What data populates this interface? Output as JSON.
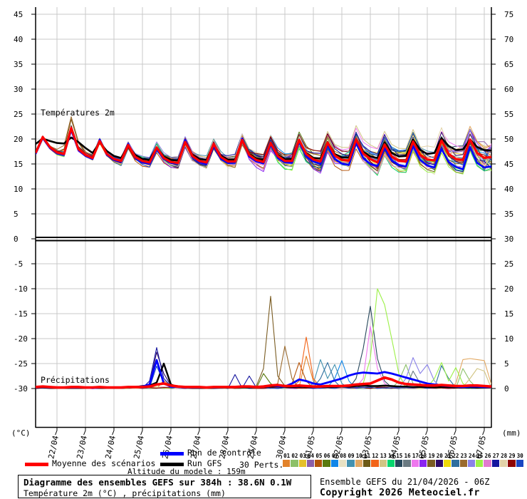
{
  "axis_units": {
    "left": "(°C)",
    "right": "(mm)"
  },
  "legend": {
    "mean": "Moyenne des scénarios",
    "control": "Run de contrôle",
    "gfs": "Run GFS",
    "perts": "30 Perts.",
    "altitude": "Altitude du modele : 159m",
    "colors": {
      "mean": "#FF0000",
      "control": "#0000FF",
      "gfs": "#000000"
    }
  },
  "footer": {
    "title": "Diagramme des ensembles GEFS sur 384h : 38.6N 0.1W",
    "subtitle": "Température 2m (°C) , précipitations (mm)",
    "run_info": "Ensemble GEFS du 21/04/2026 - 06Z",
    "copyright": "Copyright 2026 Meteociel.fr"
  },
  "chart_data": {
    "type": "line",
    "title": "Diagramme des ensembles GEFS sur 384h : 38.6N 0.1W",
    "subtitle": "Température 2m (°C) , précipitations (mm)",
    "run": "Ensemble GEFS du 21/04/2026 - 06Z",
    "grid": true,
    "x": {
      "start_hour": 0,
      "end_hour": 384,
      "step_hours": 6,
      "date_labels": [
        "22/04",
        "23/04",
        "24/04",
        "25/04",
        "26/04",
        "27/04",
        "28/04",
        "29/04",
        "30/04",
        "01/05",
        "02/05",
        "03/05",
        "04/05",
        "05/05",
        "06/05",
        "07/05"
      ]
    },
    "left_axis_ticks": [
      45,
      40,
      35,
      30,
      25,
      20,
      15,
      10,
      5,
      0,
      -5,
      -10,
      -15,
      -20,
      -25,
      -30
    ],
    "right_axis_ticks": [
      75,
      70,
      65,
      60,
      55,
      50,
      45,
      40,
      35,
      30,
      25,
      20,
      15,
      10,
      5,
      0
    ],
    "temperature_panel": {
      "label": "Températures 2m",
      "unit": "°C",
      "ylim": [
        0,
        45
      ],
      "series": [
        {
          "name": "Moyenne des scénarios",
          "color": "#FF0000",
          "width": 3.2,
          "values": [
            17.2,
            20.4,
            18.4,
            17.3,
            17.0,
            22.2,
            18.0,
            16.8,
            16.2,
            19.6,
            17.0,
            16.0,
            15.6,
            18.8,
            16.4,
            15.6,
            15.3,
            18.3,
            16.2,
            15.4,
            15.2,
            19.4,
            16.6,
            15.6,
            15.3,
            19.0,
            16.4,
            15.5,
            15.5,
            19.8,
            16.8,
            15.8,
            15.4,
            19.2,
            16.6,
            15.6,
            15.6,
            19.8,
            17.0,
            15.9,
            15.5,
            19.3,
            16.7,
            15.8,
            15.7,
            19.9,
            17.1,
            16.0,
            15.3,
            18.9,
            16.5,
            15.6,
            15.5,
            19.5,
            16.8,
            15.9,
            15.7,
            19.7,
            17.0,
            16.0,
            15.8,
            19.9,
            17.2,
            16.2,
            16.4
          ]
        },
        {
          "name": "Run de contrôle",
          "color": "#0000FF",
          "width": 2.6,
          "values": [
            17.0,
            20.2,
            18.2,
            17.1,
            16.9,
            21.8,
            17.8,
            16.6,
            16.0,
            19.9,
            16.8,
            15.8,
            15.4,
            19.0,
            16.2,
            15.3,
            15.0,
            18.0,
            16.0,
            15.2,
            15.1,
            19.8,
            16.4,
            15.4,
            15.0,
            18.6,
            16.1,
            15.2,
            15.3,
            20.1,
            16.5,
            15.5,
            15.1,
            18.8,
            16.2,
            15.3,
            15.2,
            19.4,
            16.5,
            15.5,
            15.0,
            18.8,
            16.0,
            15.1,
            14.8,
            19.2,
            16.2,
            15.0,
            14.6,
            18.2,
            15.7,
            14.8,
            14.5,
            18.6,
            15.8,
            14.7,
            14.3,
            18.0,
            15.4,
            14.4,
            13.9,
            18.4,
            15.2,
            14.3,
            14.5
          ]
        },
        {
          "name": "Run GFS",
          "color": "#000000",
          "width": 2.6,
          "values": [
            19.0,
            20.1,
            19.6,
            19.2,
            19.1,
            20.3,
            19.4,
            18.2,
            17.2,
            19.3,
            17.6,
            16.6,
            16.2,
            18.6,
            16.8,
            16.0,
            15.8,
            18.2,
            16.5,
            15.8,
            15.7,
            19.2,
            16.8,
            16.0,
            15.8,
            18.9,
            16.7,
            15.9,
            15.9,
            19.6,
            17.0,
            16.1,
            15.8,
            19.1,
            16.8,
            16.0,
            16.0,
            19.7,
            17.2,
            16.2,
            16.1,
            19.4,
            17.0,
            16.3,
            16.3,
            19.9,
            17.4,
            16.5,
            16.2,
            19.3,
            17.2,
            16.5,
            16.6,
            19.9,
            17.8,
            17.0,
            17.2,
            20.2,
            18.6,
            17.8,
            17.9,
            19.9,
            18.4,
            17.8,
            17.7
          ]
        }
      ]
    },
    "precipitation_panel": {
      "label": "Précipitations",
      "unit": "mm",
      "ylim": [
        0,
        30
      ],
      "series": [
        {
          "name": "Moyenne des scénarios",
          "color": "#FF0000",
          "width": 3.6,
          "values": [
            0.3,
            0.4,
            0.3,
            0.2,
            0.2,
            0.3,
            0.3,
            0.2,
            0.2,
            0.3,
            0.2,
            0.2,
            0.2,
            0.3,
            0.3,
            0.3,
            0.4,
            0.8,
            1.0,
            0.6,
            0.4,
            0.3,
            0.3,
            0.3,
            0.2,
            0.3,
            0.3,
            0.3,
            0.3,
            0.4,
            0.4,
            0.3,
            0.4,
            0.6,
            0.7,
            0.5,
            0.5,
            0.6,
            0.5,
            0.4,
            0.4,
            0.5,
            0.5,
            0.5,
            0.6,
            0.8,
            0.9,
            1.0,
            1.6,
            2.2,
            1.8,
            1.2,
            0.9,
            0.8,
            0.7,
            0.6,
            0.6,
            0.7,
            0.6,
            0.5,
            0.5,
            0.6,
            0.6,
            0.5,
            0.4
          ]
        },
        {
          "name": "Run de contrôle",
          "color": "#0000FF",
          "width": 2.8,
          "values": [
            0.2,
            0.3,
            0.2,
            0.2,
            0.2,
            0.2,
            0.2,
            0.2,
            0.1,
            0.2,
            0.2,
            0.2,
            0.2,
            0.2,
            0.3,
            0.4,
            0.8,
            5.7,
            1.0,
            0.4,
            0.3,
            0.2,
            0.2,
            0.2,
            0.2,
            0.2,
            0.3,
            0.3,
            0.3,
            0.4,
            0.4,
            0.3,
            0.4,
            0.6,
            0.5,
            0.4,
            1.0,
            1.8,
            1.5,
            1.0,
            0.8,
            1.2,
            1.6,
            2.0,
            2.6,
            3.0,
            3.2,
            3.1,
            3.0,
            3.3,
            3.0,
            2.6,
            2.2,
            1.8,
            1.4,
            1.0,
            0.8,
            0.6,
            0.5,
            0.4,
            0.3,
            0.4,
            0.4,
            0.3,
            0.3
          ]
        },
        {
          "name": "Run GFS",
          "color": "#000000",
          "width": 2.4,
          "values": [
            0.1,
            0.2,
            0.1,
            0.1,
            0.1,
            0.1,
            0.1,
            0.1,
            0.1,
            0.1,
            0.1,
            0.1,
            0.1,
            0.2,
            0.3,
            0.5,
            0.6,
            1.2,
            5.0,
            0.8,
            0.3,
            0.2,
            0.1,
            0.1,
            0.1,
            0.1,
            0.2,
            0.2,
            0.2,
            0.2,
            0.2,
            0.2,
            0.3,
            0.4,
            0.4,
            0.3,
            0.3,
            0.4,
            0.3,
            0.3,
            0.3,
            0.3,
            0.3,
            0.4,
            0.4,
            0.5,
            0.6,
            0.5,
            0.5,
            0.6,
            0.5,
            0.4,
            0.4,
            0.3,
            0.3,
            0.3,
            0.2,
            0.3,
            0.3,
            0.2,
            0.2,
            0.2,
            0.2,
            0.2,
            0.2
          ]
        }
      ],
      "member_events": [
        {
          "m": 27,
          "pts": [
            [
              96,
              1.5
            ],
            [
              102,
              8.2
            ],
            [
              108,
              2.0
            ],
            [
              114,
              0.5
            ],
            [
              168,
              2.8
            ],
            [
              180,
              2.5
            ]
          ]
        },
        {
          "m": 20,
          "pts": [
            [
              96,
              0.8
            ],
            [
              102,
              7.3
            ],
            [
              108,
              3.0
            ],
            [
              114,
              0.6
            ]
          ]
        },
        {
          "m": 30,
          "pts": [
            [
              102,
              4.5
            ],
            [
              108,
              1.2
            ]
          ]
        },
        {
          "m": 19,
          "pts": [
            [
              186,
              0.5
            ],
            [
              192,
              4.0
            ],
            [
              198,
              18.5
            ],
            [
              204,
              2.5
            ],
            [
              210,
              0.5
            ]
          ]
        },
        {
          "m": 23,
          "pts": [
            [
              204,
              1.0
            ],
            [
              210,
              8.5
            ],
            [
              216,
              2.0
            ]
          ]
        },
        {
          "m": 5,
          "pts": [
            [
              216,
              1.0
            ],
            [
              222,
              5.2
            ],
            [
              228,
              1.5
            ]
          ]
        },
        {
          "m": 12,
          "pts": [
            [
              222,
              1.5
            ],
            [
              228,
              10.3
            ],
            [
              234,
              2.0
            ]
          ]
        },
        {
          "m": 1,
          "pts": [
            [
              108,
              1.6
            ],
            [
              114,
              0.4
            ],
            [
              228,
              6.5
            ],
            [
              234,
              1.5
            ]
          ]
        },
        {
          "m": 9,
          "pts": [
            [
              234,
              1.0
            ],
            [
              240,
              5.8
            ],
            [
              246,
              2.0
            ],
            [
              252,
              4.8
            ],
            [
              258,
              1.0
            ]
          ]
        },
        {
          "m": 22,
          "pts": [
            [
              240,
              2.0
            ],
            [
              246,
              5.2
            ],
            [
              252,
              1.5
            ],
            [
              342,
              4.6
            ],
            [
              348,
              2.0
            ]
          ]
        },
        {
          "m": 7,
          "pts": [
            [
              252,
              2.0
            ],
            [
              258,
              5.6
            ],
            [
              264,
              1.5
            ]
          ]
        },
        {
          "m": 6,
          "pts": [
            [
              192,
              3.0
            ],
            [
              198,
              1.0
            ]
          ]
        },
        {
          "m": 15,
          "pts": [
            [
              270,
              2.0
            ],
            [
              276,
              8.0
            ],
            [
              282,
              16.5
            ],
            [
              288,
              6.0
            ],
            [
              294,
              1.5
            ]
          ]
        },
        {
          "m": 17,
          "pts": [
            [
              276,
              2.0
            ],
            [
              282,
              12.5
            ],
            [
              288,
              4.0
            ],
            [
              294,
              1.0
            ]
          ]
        },
        {
          "m": 25,
          "pts": [
            [
              276,
              1.0
            ],
            [
              282,
              6.0
            ],
            [
              288,
              20.0
            ],
            [
              294,
              16.8
            ],
            [
              300,
              10.0
            ],
            [
              306,
              3.0
            ],
            [
              336,
              2.0
            ],
            [
              342,
              5.2
            ],
            [
              348,
              1.5
            ],
            [
              354,
              4.2
            ],
            [
              360,
              1.0
            ]
          ]
        },
        {
          "m": 24,
          "pts": [
            [
              312,
              2.0
            ],
            [
              318,
              6.2
            ],
            [
              324,
              3.0
            ],
            [
              330,
              4.8
            ],
            [
              336,
              1.5
            ]
          ]
        },
        {
          "m": 16,
          "pts": [
            [
              318,
              3.5
            ],
            [
              324,
              1.0
            ]
          ]
        },
        {
          "m": 2,
          "pts": [
            [
              306,
              1.5
            ],
            [
              312,
              4.8
            ],
            [
              318,
              1.0
            ],
            [
              360,
              4.0
            ],
            [
              366,
              1.5
            ]
          ]
        },
        {
          "m": 10,
          "pts": [
            [
              354,
              1.0
            ],
            [
              360,
              5.8
            ],
            [
              366,
              6.0
            ],
            [
              372,
              5.8
            ],
            [
              378,
              5.6
            ],
            [
              384,
              0.8
            ]
          ]
        },
        {
          "m": 13,
          "pts": [
            [
              366,
              2.0
            ],
            [
              372,
              4.0
            ],
            [
              378,
              3.5
            ]
          ]
        }
      ]
    },
    "members": [
      {
        "id": "01",
        "color": "#E2822A"
      },
      {
        "id": "02",
        "color": "#8CC068"
      },
      {
        "id": "03",
        "color": "#E5C02A"
      },
      {
        "id": "04",
        "color": "#8B5FA8"
      },
      {
        "id": "05",
        "color": "#B35309"
      },
      {
        "id": "06",
        "color": "#5A7A10"
      },
      {
        "id": "07",
        "color": "#1086E8"
      },
      {
        "id": "08",
        "color": "#E8E2C4"
      },
      {
        "id": "09",
        "color": "#4492B0"
      },
      {
        "id": "10",
        "color": "#E2A862"
      },
      {
        "id": "11",
        "color": "#6E5A16"
      },
      {
        "id": "12",
        "color": "#F26419"
      },
      {
        "id": "13",
        "color": "#D2C584"
      },
      {
        "id": "14",
        "color": "#06D66E"
      },
      {
        "id": "15",
        "color": "#28485C"
      },
      {
        "id": "16",
        "color": "#6A7A82"
      },
      {
        "id": "17",
        "color": "#EE78EE"
      },
      {
        "id": "18",
        "color": "#8A24F0"
      },
      {
        "id": "19",
        "color": "#7A5C22"
      },
      {
        "id": "20",
        "color": "#2E0A66"
      },
      {
        "id": "21",
        "color": "#EFD908"
      },
      {
        "id": "22",
        "color": "#2E6E9E"
      },
      {
        "id": "23",
        "color": "#9A6A2E"
      },
      {
        "id": "24",
        "color": "#8A82E8"
      },
      {
        "id": "25",
        "color": "#9CF048"
      },
      {
        "id": "26",
        "color": "#E27ACF"
      },
      {
        "id": "27",
        "color": "#14149E"
      },
      {
        "id": "28",
        "color": "#E2D2A8"
      },
      {
        "id": "29",
        "color": "#8E0404"
      },
      {
        "id": "30",
        "color": "#1A46C2"
      }
    ],
    "member_spread": {
      "start": 0.35,
      "end": 2.8,
      "bias": 1.0,
      "jitter": 0.3,
      "warm_bump": {
        "members": [
          5,
          19,
          23
        ],
        "hour": 30,
        "amount": 2.0,
        "width": 9
      }
    }
  }
}
